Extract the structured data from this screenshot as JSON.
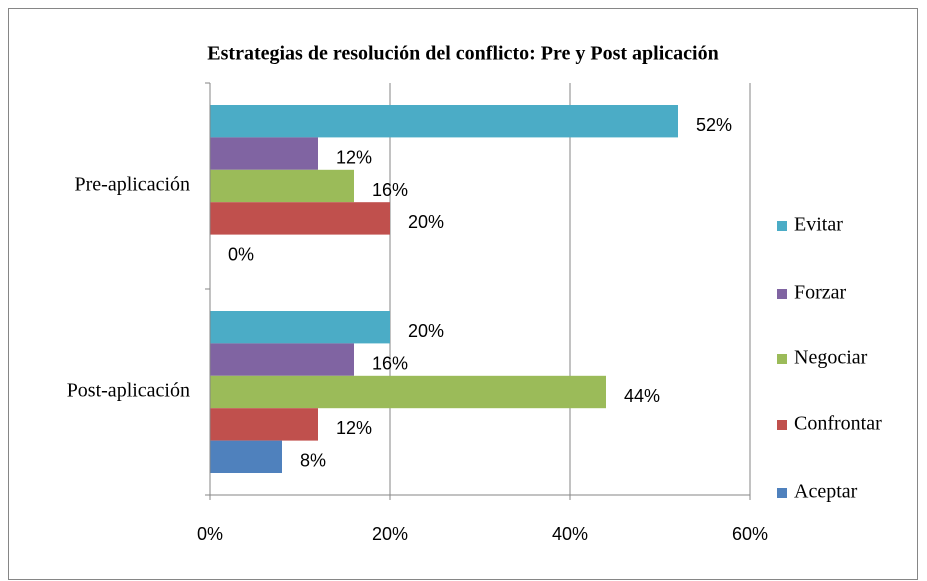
{
  "chart_data": {
    "type": "bar",
    "orientation": "horizontal",
    "title": "Estrategias de resolución del conflicto: Pre y Post aplicación",
    "categories": [
      "Pre-aplicación",
      "Post-aplicación"
    ],
    "series": [
      {
        "name": "Evitar",
        "color": "#4bacc6",
        "values": [
          52,
          20
        ],
        "value_labels": [
          "52%",
          "20%"
        ]
      },
      {
        "name": "Forzar",
        "color": "#8064a2",
        "values": [
          12,
          16
        ],
        "value_labels": [
          "12%",
          "16%"
        ]
      },
      {
        "name": "Negociar",
        "color": "#9bbb59",
        "values": [
          16,
          44
        ],
        "value_labels": [
          "16%",
          "44%"
        ]
      },
      {
        "name": "Confrontar",
        "color": "#c0504d",
        "values": [
          20,
          12
        ],
        "value_labels": [
          "20%",
          "12%"
        ]
      },
      {
        "name": "Aceptar",
        "color": "#4f81bd",
        "values": [
          0,
          8
        ],
        "value_labels": [
          "0%",
          "8%"
        ]
      }
    ],
    "xlim": [
      0,
      60
    ],
    "xticks": [
      {
        "value": 0,
        "label": "0%"
      },
      {
        "value": 20,
        "label": "20%"
      },
      {
        "value": 40,
        "label": "40%"
      },
      {
        "value": 60,
        "label": "60%"
      }
    ],
    "grid": true,
    "legend": "right"
  }
}
